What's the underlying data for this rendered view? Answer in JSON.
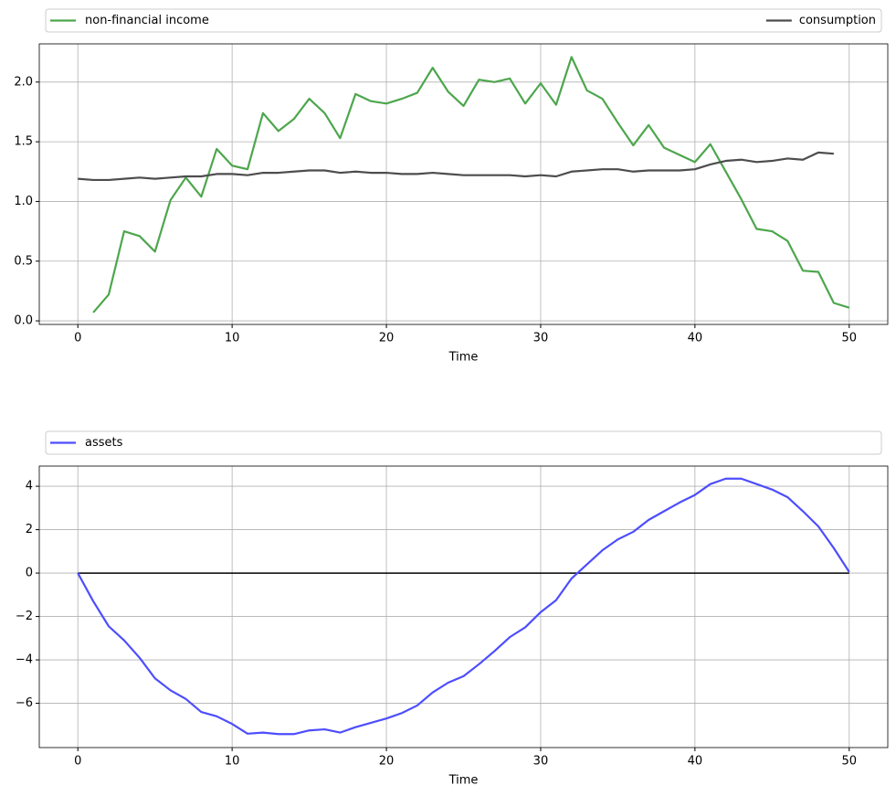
{
  "chart_data": [
    {
      "type": "line",
      "xlabel": "Time",
      "legend": "top",
      "grid": true,
      "xlim": [
        -2.5,
        52.5
      ],
      "ylim": [
        -0.03,
        2.32
      ],
      "xticks": [
        0,
        10,
        20,
        30,
        40,
        50
      ],
      "yticks": [
        {
          "value": 0,
          "label": "0.0"
        },
        0.5,
        {
          "value": 1,
          "label": "1.0"
        },
        1.5,
        {
          "value": 2,
          "label": "2.0"
        }
      ],
      "x": [
        0,
        1,
        2,
        3,
        4,
        5,
        6,
        7,
        8,
        9,
        10,
        11,
        12,
        13,
        14,
        15,
        16,
        17,
        18,
        19,
        20,
        21,
        22,
        23,
        24,
        25,
        26,
        27,
        28,
        29,
        30,
        31,
        32,
        33,
        34,
        35,
        36,
        37,
        38,
        39,
        40,
        41,
        42,
        43,
        44,
        45,
        46,
        47,
        48,
        49,
        50
      ],
      "series": [
        {
          "name": "non-financial income",
          "color": "#4da64d",
          "values": [
            null,
            0.07,
            0.22,
            0.75,
            0.71,
            0.58,
            1.01,
            1.2,
            1.04,
            1.44,
            1.3,
            1.27,
            1.74,
            1.59,
            1.69,
            1.86,
            1.74,
            1.53,
            1.9,
            1.84,
            1.82,
            1.86,
            1.91,
            2.12,
            1.92,
            1.8,
            2.02,
            2.0,
            2.03,
            1.82,
            1.99,
            1.81,
            2.21,
            1.93,
            1.86,
            1.66,
            1.47,
            1.64,
            1.45,
            1.39,
            1.33,
            1.48,
            1.25,
            1.02,
            0.77,
            0.75,
            0.67,
            0.42,
            0.41,
            0.15,
            0.11
          ]
        },
        {
          "name": "consumption",
          "color": "#4d4d4d",
          "values": [
            1.19,
            1.18,
            1.18,
            1.19,
            1.2,
            1.19,
            1.2,
            1.21,
            1.21,
            1.23,
            1.23,
            1.22,
            1.24,
            1.24,
            1.25,
            1.26,
            1.26,
            1.24,
            1.25,
            1.24,
            1.24,
            1.23,
            1.23,
            1.24,
            1.23,
            1.22,
            1.22,
            1.22,
            1.22,
            1.21,
            1.22,
            1.21,
            1.25,
            1.26,
            1.27,
            1.27,
            1.25,
            1.26,
            1.26,
            1.26,
            1.27,
            1.31,
            1.34,
            1.35,
            1.33,
            1.34,
            1.36,
            1.35,
            1.41,
            1.4,
            null
          ]
        }
      ]
    },
    {
      "type": "line",
      "xlabel": "Time",
      "legend": "top",
      "grid": true,
      "hline": 0,
      "xlim": [
        -2.5,
        52.5
      ],
      "ylim": [
        -8.04,
        4.93
      ],
      "xticks": [
        0,
        10,
        20,
        30,
        40,
        50
      ],
      "yticks": [
        {
          "value": -6,
          "label": "−6"
        },
        {
          "value": -4,
          "label": "−4"
        },
        {
          "value": -2,
          "label": "−2"
        },
        0,
        2,
        4
      ],
      "x": [
        0,
        1,
        2,
        3,
        4,
        5,
        6,
        7,
        8,
        9,
        10,
        11,
        12,
        13,
        14,
        15,
        16,
        17,
        18,
        19,
        20,
        21,
        22,
        23,
        24,
        25,
        26,
        27,
        28,
        29,
        30,
        31,
        32,
        33,
        34,
        35,
        36,
        37,
        38,
        39,
        40,
        41,
        42,
        43,
        44,
        45,
        46,
        47,
        48,
        49,
        50
      ],
      "series": [
        {
          "name": "assets",
          "color": "#4d4dff",
          "values": [
            0,
            -1.3,
            -2.45,
            -3.1,
            -3.9,
            -4.85,
            -5.4,
            -5.8,
            -6.4,
            -6.6,
            -6.95,
            -7.4,
            -7.35,
            -7.42,
            -7.42,
            -7.25,
            -7.2,
            -7.35,
            -7.1,
            -6.9,
            -6.7,
            -6.45,
            -6.1,
            -5.5,
            -5.05,
            -4.75,
            -4.2,
            -3.6,
            -2.95,
            -2.5,
            -1.8,
            -1.25,
            -0.25,
            0.4,
            1.05,
            1.55,
            1.9,
            2.45,
            2.85,
            3.25,
            3.6,
            4.1,
            4.35,
            4.35,
            4.1,
            3.85,
            3.5,
            2.85,
            2.15,
            1.15,
            0.05
          ]
        }
      ]
    }
  ]
}
